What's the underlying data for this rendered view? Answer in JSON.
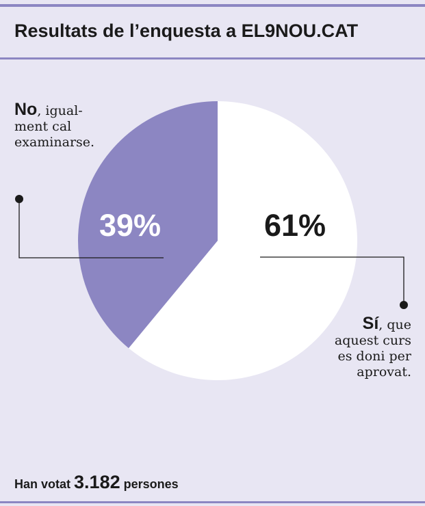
{
  "title": "Resultats de l’enquesta a EL9NOU.CAT",
  "colors": {
    "background": "#e8e6f3",
    "accent": "#8c86c2",
    "no_slice": "#8c86c2",
    "si_slice": "#ffffff",
    "text": "#1a1a1a"
  },
  "chart_data": {
    "type": "pie",
    "title": "Resultats de l’enquesta a EL9NOU.CAT",
    "slices": [
      {
        "label": "Sí",
        "value": 61,
        "display": "61%",
        "color": "#ffffff"
      },
      {
        "label": "No",
        "value": 39,
        "display": "39%",
        "color": "#8c86c2"
      }
    ]
  },
  "annotations": {
    "no": {
      "bold": "No",
      "text": ", igual­ment cal examinar­se."
    },
    "si": {
      "bold": "Sí",
      "text": ", que aquest curs es doni per aprovat."
    }
  },
  "footer": {
    "prefix": "Han votat",
    "count": "3.182",
    "suffix": "persones"
  }
}
